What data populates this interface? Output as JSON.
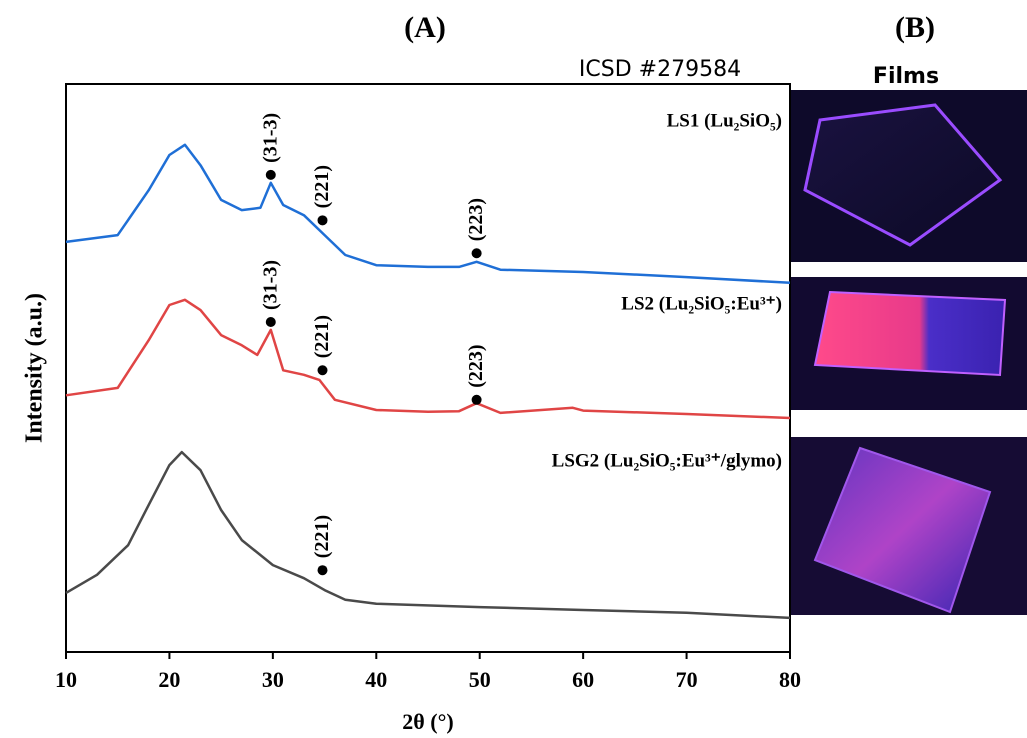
{
  "chart_data": {
    "type": "line",
    "title": "(A)",
    "subtitle": "ICSD #279584",
    "x_label": "2θ (°)",
    "y_label": "Intensity (a.u.)",
    "xlim": [
      10,
      80
    ],
    "xticks": [
      10,
      20,
      30,
      40,
      50,
      60,
      70,
      80
    ],
    "ylim": [
      0,
      100
    ],
    "series": [
      {
        "name": "LS1 (Lu₂SiO₅)",
        "color": "#1f6fd6",
        "x": [
          10,
          15,
          18,
          20,
          21.5,
          23,
          25,
          27,
          28.8,
          29.8,
          31,
          33,
          35,
          37,
          40,
          45,
          48,
          49.7,
          52,
          60,
          70,
          80
        ],
        "values": [
          72.2,
          73.4,
          81.3,
          87.5,
          89.3,
          85.7,
          79.6,
          77.8,
          78.2,
          82.6,
          78.7,
          76.9,
          73.4,
          69.9,
          68.1,
          67.8,
          67.8,
          68.7,
          67.3,
          66.9,
          66,
          65
        ]
      },
      {
        "name": "LS2 (Lu₂SiO₅:Eu³⁺)",
        "color": "#e04545",
        "x": [
          10,
          15,
          18,
          20,
          21.5,
          23,
          25,
          27,
          28.5,
          29.8,
          31,
          33,
          34.5,
          36,
          40,
          45,
          48,
          49.7,
          52,
          59,
          60,
          70,
          80
        ],
        "values": [
          45.2,
          46.5,
          54.9,
          61.1,
          62,
          60.2,
          55.8,
          54,
          52.3,
          56.7,
          49.6,
          48.8,
          47.9,
          44.4,
          42.6,
          42.3,
          42.4,
          43.8,
          42.1,
          43,
          42.5,
          41.9,
          41.2
        ]
      },
      {
        "name": "LSG2 (Lu₂SiO₅:Eu³⁺/glymo)",
        "color": "#4a4a4a",
        "x": [
          10,
          13,
          16,
          18,
          20,
          21.2,
          23,
          25,
          27,
          30,
          33,
          35,
          37,
          40,
          50,
          60,
          70,
          80
        ],
        "values": [
          10.4,
          13.6,
          18.8,
          25.9,
          32.9,
          35.2,
          32,
          25,
          19.7,
          15.3,
          13,
          10.9,
          9.2,
          8.5,
          7.9,
          7.4,
          6.9,
          6
        ]
      }
    ],
    "annotations": [
      {
        "text": "(31-3)",
        "x": 29.8,
        "y": 84
      },
      {
        "text": "(221)",
        "x": 34.8,
        "y": 76
      },
      {
        "text": "(223)",
        "x": 49.7,
        "y": 70.2
      },
      {
        "text": "(31-3)",
        "x": 29.8,
        "y": 58.1
      },
      {
        "text": "(221)",
        "x": 34.8,
        "y": 49.6
      },
      {
        "text": "(223)",
        "x": 49.7,
        "y": 44.4
      },
      {
        "text": "(221)",
        "x": 34.8,
        "y": 14.4
      }
    ]
  },
  "panel_b": {
    "title": "(B)",
    "label": "Films"
  }
}
